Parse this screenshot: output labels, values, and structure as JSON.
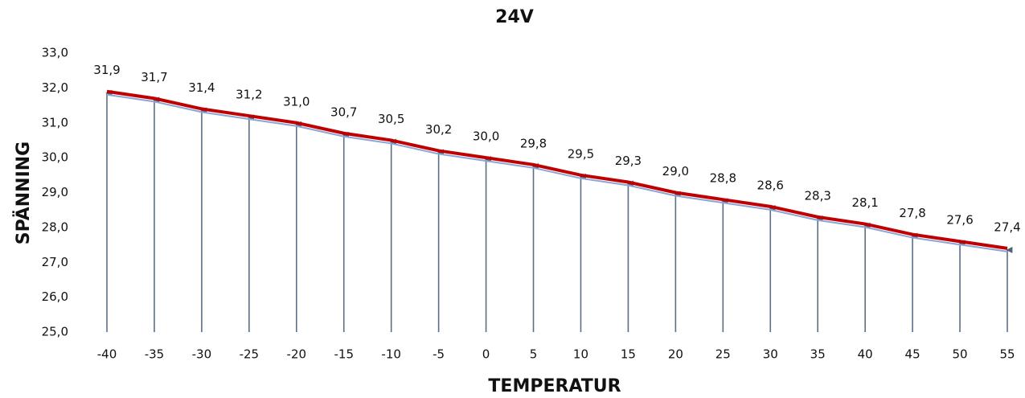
{
  "chart_data": {
    "type": "line",
    "title": "24V",
    "x_label": "TEMPERATUR",
    "y_label": "SPÄNNING",
    "x": [
      -40,
      -35,
      -30,
      -25,
      -20,
      -15,
      -10,
      -5,
      0,
      5,
      10,
      15,
      20,
      25,
      30,
      35,
      40,
      45,
      50,
      55
    ],
    "xlim": [
      -40,
      55
    ],
    "xticks": [
      -40,
      -35,
      -30,
      -25,
      -20,
      -15,
      -10,
      -5,
      0,
      5,
      10,
      15,
      20,
      25,
      30,
      35,
      40,
      45,
      50,
      55
    ],
    "values": [
      31.9,
      31.7,
      31.4,
      31.2,
      31.0,
      30.7,
      30.5,
      30.2,
      30.0,
      29.8,
      29.5,
      29.3,
      29.0,
      28.8,
      28.6,
      28.3,
      28.1,
      27.8,
      27.6,
      27.4
    ],
    "value_labels": [
      "31,9",
      "31,7",
      "31,4",
      "31,2",
      "31,0",
      "30,7",
      "30,5",
      "30,2",
      "30,0",
      "29,8",
      "29,5",
      "29,3",
      "29,0",
      "28,8",
      "28,6",
      "28,3",
      "28,1",
      "27,8",
      "27,6",
      "27,4"
    ],
    "color": "#c00000",
    "drop_line_color": "#5a6f86",
    "ylim": [
      25,
      33
    ],
    "yticks": [
      {
        "value": 25,
        "label": "25,0"
      },
      {
        "value": 26,
        "label": "26,0"
      },
      {
        "value": 27,
        "label": "27,0"
      },
      {
        "value": 28,
        "label": "28,0"
      },
      {
        "value": 29,
        "label": "29,0"
      },
      {
        "value": 30,
        "label": "30,0"
      },
      {
        "value": 31,
        "label": "31,0"
      },
      {
        "value": 32,
        "label": "32,0"
      },
      {
        "value": 33,
        "label": "33,0"
      }
    ]
  }
}
